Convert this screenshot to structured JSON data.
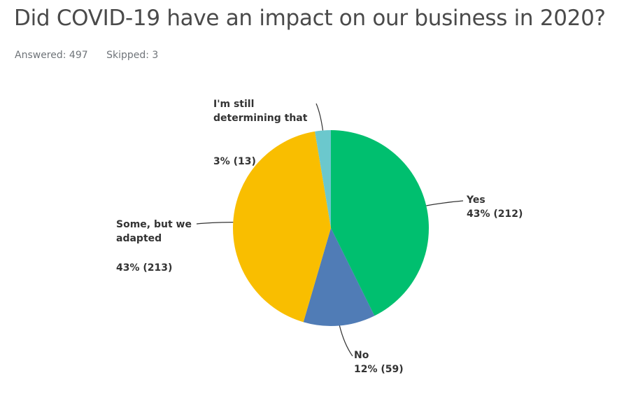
{
  "title": "Did COVID-19 have an impact on our business in 2020?",
  "stats": {
    "answered": "Answered: 497",
    "skipped": "Skipped: 3"
  },
  "chart_data": {
    "type": "pie",
    "title": "Did COVID-19 have an impact on our business in 2020?",
    "slices": [
      {
        "label": "Yes",
        "label_lines": [
          "Yes"
        ],
        "value": 212,
        "percent_text": "43% (212)",
        "color": "#00bf6f"
      },
      {
        "label": "No",
        "label_lines": [
          "No"
        ],
        "value": 59,
        "percent_text": "12% (59)",
        "color": "#507cb6"
      },
      {
        "label": "Some, but we adapted",
        "label_lines": [
          "Some, but we",
          "adapted"
        ],
        "value": 213,
        "percent_text": "43% (213)",
        "color": "#f9be00"
      },
      {
        "label": "I'm still determining that",
        "label_lines": [
          "I'm still",
          "determining that"
        ],
        "value": 13,
        "percent_text": "3% (13)",
        "color": "#6bc8cd"
      }
    ],
    "start_angle": "12 o'clock, clockwise"
  }
}
